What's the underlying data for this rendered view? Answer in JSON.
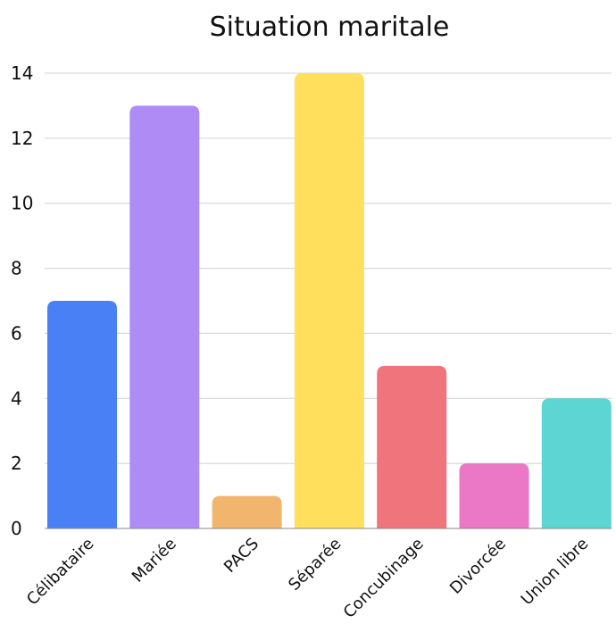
{
  "chart_data": {
    "type": "bar",
    "title": "Situation maritale",
    "xlabel": "",
    "ylabel": "",
    "categories": [
      "Célibataire",
      "Mariée",
      "PACS",
      "Séparée",
      "Concubinage",
      "Divorcée",
      "Union libre"
    ],
    "values": [
      7,
      13,
      1,
      14,
      5,
      2,
      4
    ],
    "colors": [
      "#4a80f5",
      "#af8cf5",
      "#f2b56e",
      "#ffdf5c",
      "#ef747b",
      "#eb78c6",
      "#5dd5d3"
    ],
    "ylim": [
      0,
      14
    ],
    "yticks": [
      0,
      2,
      4,
      6,
      8,
      10,
      12,
      14
    ],
    "grid": true,
    "legend": "none"
  }
}
